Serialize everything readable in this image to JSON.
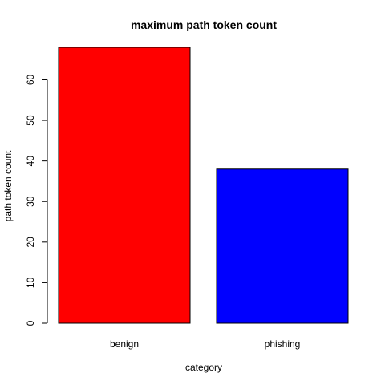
{
  "chart_data": {
    "type": "bar",
    "title": "maximum path token count",
    "xlabel": "category",
    "ylabel": "path token count",
    "categories": [
      "benign",
      "phishing"
    ],
    "values": [
      68,
      38
    ],
    "colors": [
      "#ff0000",
      "#0000ff"
    ],
    "ylim": [
      0,
      68
    ],
    "yticks": [
      0,
      10,
      20,
      30,
      40,
      50,
      60
    ],
    "grid": false
  }
}
